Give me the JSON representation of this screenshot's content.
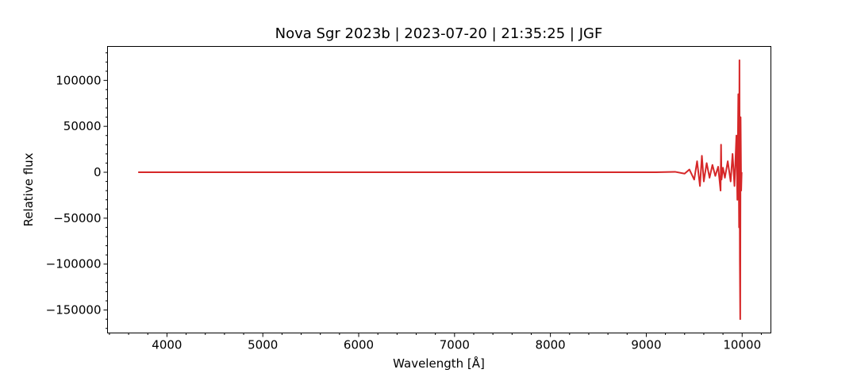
{
  "chart_data": {
    "type": "line",
    "title": "Nova Sgr 2023b | 2023-07-20 | 21:35:25 | JGF",
    "xlabel": "Wavelength [Å]",
    "ylabel": "Relative flux",
    "xlim": [
      3380,
      10300
    ],
    "ylim": [
      -175000,
      137000
    ],
    "xticks": [
      4000,
      5000,
      6000,
      7000,
      8000,
      9000,
      10000
    ],
    "yticks": [
      -150000,
      -100000,
      -50000,
      0,
      50000,
      100000
    ],
    "xtick_labels": [
      "4000",
      "5000",
      "6000",
      "7000",
      "8000",
      "9000",
      "10000"
    ],
    "ytick_labels": [
      "−150000",
      "−100000",
      "−50000",
      "0",
      "50000",
      "100000"
    ],
    "line_color": "#d62728",
    "series": [
      {
        "x": [
          3700,
          3900,
          4500,
          5500,
          6500,
          7500,
          8500,
          9100,
          9300,
          9400,
          9450,
          9500,
          9530,
          9560,
          9580,
          9600,
          9630,
          9660,
          9690,
          9720,
          9750,
          9775,
          9780,
          9785,
          9800,
          9820,
          9850,
          9880,
          9900,
          9920,
          9940,
          9950,
          9960,
          9968,
          9972,
          9976,
          9980,
          9984,
          9990,
          9995
        ],
        "y": [
          0,
          0,
          0,
          0,
          0,
          0,
          0,
          0,
          500,
          -1500,
          3000,
          -8000,
          12000,
          -15000,
          18000,
          -10000,
          10000,
          -6000,
          8000,
          -4000,
          6000,
          -20000,
          30000,
          -8000,
          5000,
          -6000,
          12000,
          -10000,
          20000,
          -15000,
          40000,
          -30000,
          85000,
          -60000,
          122000,
          -95000,
          -160000,
          60000,
          -20000,
          0
        ]
      }
    ]
  }
}
